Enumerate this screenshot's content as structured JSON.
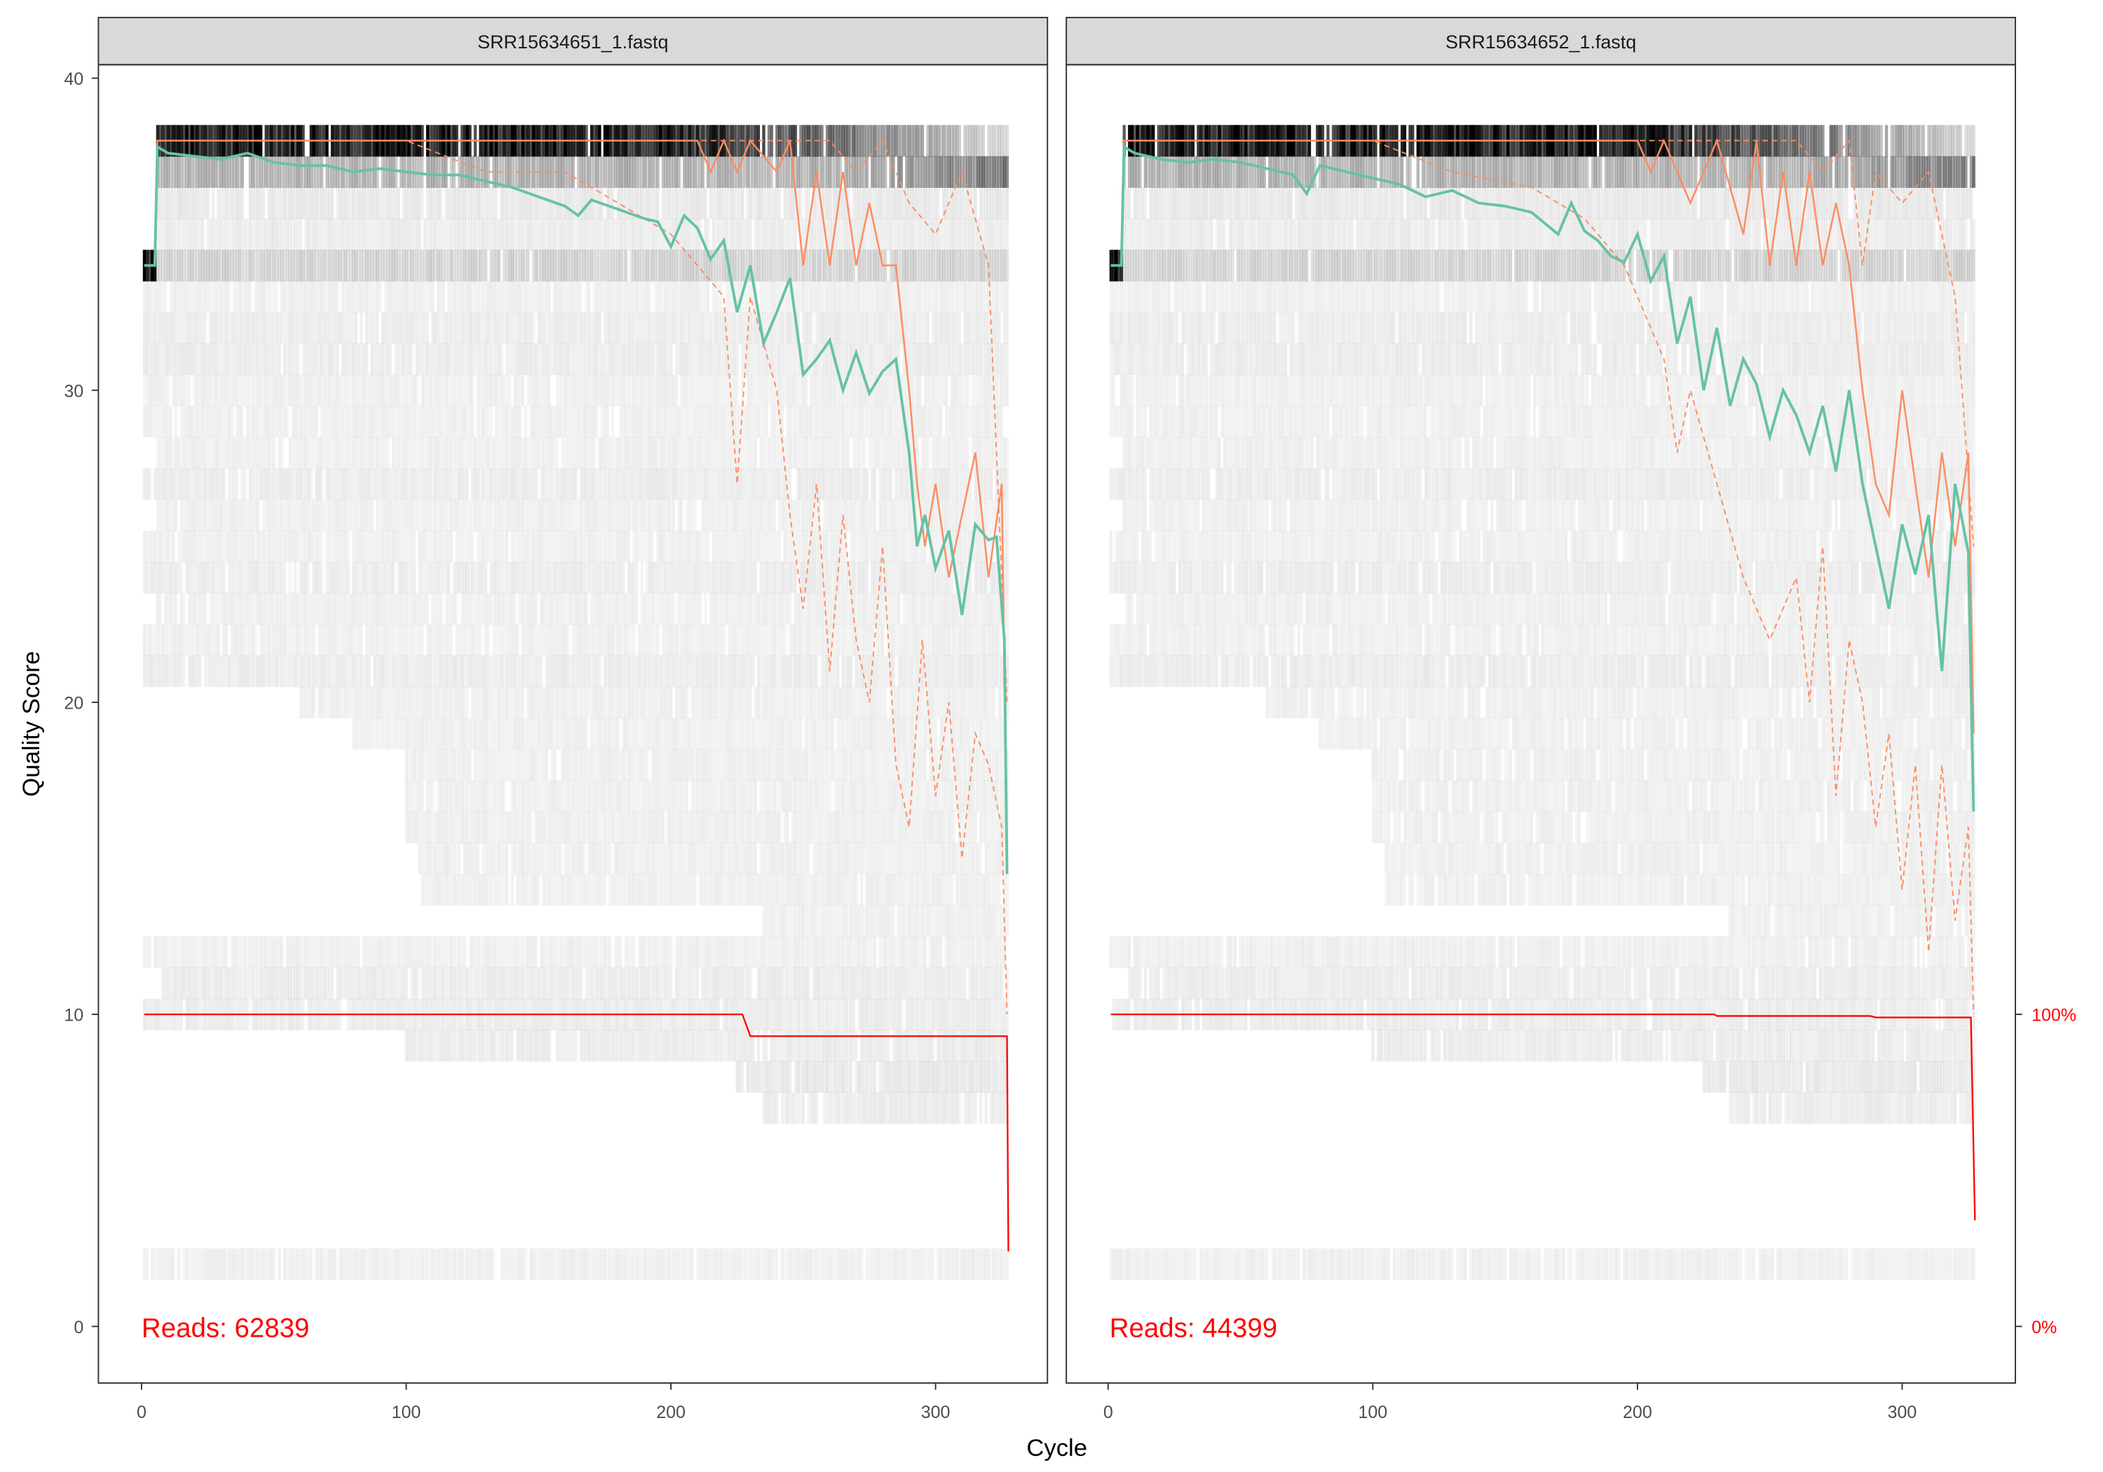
{
  "chart_data": {
    "type": "line",
    "xlabel": "Cycle",
    "ylabel": "Quality Score",
    "xlim": [
      -16,
      345
    ],
    "ylim": [
      -1.8,
      40.4
    ],
    "xticks": [
      "0",
      "100",
      "200",
      "300"
    ],
    "yticks": [
      "0",
      "10",
      "20",
      "30",
      "40"
    ],
    "right_axis_ticks": [
      "0%",
      "100%"
    ],
    "grid": false,
    "colors": {
      "mean": "#66c2a5",
      "quantiles": "#fc8d62",
      "cumulative_reads": "#ff0000",
      "heatmap": "#000000"
    },
    "panels": [
      {
        "title": "SRR15634651_1.fastq",
        "reads_label": "Reads:",
        "reads": "62839",
        "mean": {
          "x": [
            1,
            5,
            6,
            10,
            20,
            30,
            40,
            50,
            60,
            70,
            80,
            90,
            100,
            110,
            120,
            130,
            140,
            150,
            160,
            165,
            170,
            180,
            190,
            195,
            200,
            205,
            210,
            215,
            220,
            225,
            230,
            235,
            240,
            245,
            250,
            255,
            260,
            265,
            270,
            275,
            280,
            285,
            290,
            293,
            296,
            300,
            305,
            310,
            315,
            320,
            323,
            326,
            327
          ],
          "y": [
            34,
            34,
            37.8,
            37.6,
            37.5,
            37.4,
            37.6,
            37.3,
            37.2,
            37.2,
            37.0,
            37.1,
            37.0,
            36.9,
            36.9,
            36.7,
            36.5,
            36.2,
            35.9,
            35.6,
            36.1,
            35.8,
            35.5,
            35.4,
            34.6,
            35.6,
            35.2,
            34.2,
            34.8,
            32.5,
            34.0,
            31.5,
            32.5,
            33.6,
            30.5,
            31.0,
            31.6,
            30.0,
            31.2,
            29.9,
            30.6,
            31.0,
            28.0,
            25.0,
            26.0,
            24.3,
            25.5,
            22.8,
            25.7,
            25.2,
            25.3,
            22.0,
            14.5
          ]
        },
        "median": {
          "x": [
            1,
            5,
            6,
            200,
            205,
            210,
            215,
            220,
            225,
            230,
            240,
            245,
            250,
            255,
            260,
            265,
            270,
            275,
            280,
            285,
            290,
            293,
            296,
            300,
            305,
            310,
            315,
            320,
            325,
            327
          ],
          "y": [
            34,
            34,
            38,
            38,
            38,
            38,
            37,
            38,
            37,
            38,
            37,
            38,
            34,
            37,
            34,
            37,
            34,
            36,
            34,
            34,
            30,
            27,
            25,
            27,
            24,
            26,
            28,
            24,
            27,
            15
          ]
        },
        "q25": {
          "x": [
            1,
            5,
            6,
            100,
            130,
            160,
            180,
            200,
            210,
            220,
            225,
            230,
            240,
            245,
            250,
            255,
            260,
            265,
            270,
            275,
            280,
            285,
            290,
            295,
            300,
            305,
            310,
            315,
            320,
            325,
            327
          ],
          "y": [
            34,
            34,
            38,
            38,
            37,
            37,
            36,
            35,
            34,
            33,
            27,
            33,
            30,
            26,
            23,
            27,
            21,
            26,
            22,
            20,
            25,
            18,
            16,
            22,
            17,
            20,
            15,
            19,
            18,
            16,
            10
          ]
        },
        "q75": {
          "x": [
            1,
            5,
            6,
            250,
            260,
            270,
            280,
            290,
            300,
            310,
            320,
            327
          ],
          "y": [
            34,
            34,
            38,
            38,
            38,
            37,
            38,
            36,
            35,
            37,
            34,
            20
          ]
        },
        "cumulative_reads_pct": {
          "x": [
            1,
            227,
            230,
            327,
            327.5
          ],
          "y": [
            100,
            100,
            93,
            93,
            24
          ]
        }
      },
      {
        "title": "SRR15634652_1.fastq",
        "reads_label": "Reads:",
        "reads": "44399",
        "mean": {
          "x": [
            1,
            5,
            6,
            10,
            20,
            30,
            40,
            50,
            60,
            70,
            75,
            80,
            90,
            100,
            110,
            120,
            130,
            140,
            150,
            160,
            170,
            175,
            180,
            185,
            190,
            195,
            200,
            205,
            210,
            215,
            220,
            225,
            230,
            235,
            240,
            245,
            250,
            255,
            260,
            265,
            270,
            275,
            280,
            285,
            290,
            295,
            300,
            305,
            310,
            315,
            320,
            325,
            327
          ],
          "y": [
            34,
            34,
            37.8,
            37.6,
            37.4,
            37.3,
            37.4,
            37.3,
            37.1,
            36.9,
            36.3,
            37.2,
            37.0,
            36.8,
            36.6,
            36.2,
            36.4,
            36.0,
            35.9,
            35.7,
            35.0,
            36.0,
            35.1,
            34.8,
            34.3,
            34.1,
            35.0,
            33.5,
            34.3,
            31.5,
            33.0,
            30.0,
            32.0,
            29.5,
            31.0,
            30.2,
            28.5,
            30.0,
            29.2,
            28.0,
            29.5,
            27.4,
            30.0,
            27.0,
            25.0,
            23.0,
            25.7,
            24.1,
            26.0,
            21.0,
            27.0,
            24.8,
            16.5
          ]
        },
        "median": {
          "x": [
            1,
            5,
            6,
            200,
            205,
            210,
            215,
            220,
            225,
            230,
            240,
            245,
            250,
            255,
            260,
            265,
            270,
            275,
            280,
            285,
            290,
            295,
            300,
            305,
            310,
            315,
            320,
            325,
            327
          ],
          "y": [
            34,
            34,
            38,
            38,
            37,
            38,
            37,
            36,
            37,
            38,
            35,
            38,
            34,
            37,
            34,
            37,
            34,
            36,
            34,
            30,
            27,
            26,
            30,
            27,
            24,
            28,
            25,
            28,
            19
          ]
        },
        "q25": {
          "x": [
            1,
            5,
            6,
            100,
            130,
            160,
            180,
            195,
            200,
            210,
            215,
            220,
            230,
            240,
            250,
            260,
            265,
            270,
            275,
            280,
            285,
            290,
            295,
            300,
            305,
            310,
            315,
            320,
            325,
            327
          ],
          "y": [
            34,
            34,
            38,
            38,
            37,
            36.5,
            35.5,
            34,
            33,
            31,
            28,
            30,
            27,
            24,
            22,
            24,
            20,
            25,
            17,
            22,
            20,
            16,
            19,
            14,
            18,
            12,
            18,
            13,
            16,
            10
          ]
        },
        "q75": {
          "x": [
            1,
            5,
            6,
            260,
            270,
            280,
            285,
            290,
            300,
            310,
            320,
            327
          ],
          "y": [
            34,
            34,
            38,
            38,
            37,
            38,
            34,
            37,
            36,
            37,
            33,
            25
          ]
        },
        "cumulative_reads_pct": {
          "x": [
            1,
            229,
            230,
            288,
            290,
            326,
            327.5
          ],
          "y": [
            100,
            100,
            99.5,
            99.5,
            99,
            99,
            34
          ]
        }
      }
    ],
    "heatmap_rows": [
      {
        "score": 38,
        "start": 6,
        "end": 327,
        "shade": 0.85,
        "fade_from": 200,
        "fade_to": 0.12
      },
      {
        "score": 37,
        "start": 6,
        "end": 327,
        "shade": 0.25,
        "fade_from": 260,
        "fade_to": 0.45
      },
      {
        "score": 36,
        "start": 6,
        "end": 327,
        "shade": 0.07
      },
      {
        "score": 35,
        "start": 6,
        "end": 327,
        "shade": 0.06
      },
      {
        "score": 34,
        "start": 1,
        "end": 5,
        "shade": 0.95
      },
      {
        "score": 34,
        "start": 6,
        "end": 327,
        "shade": 0.14
      },
      {
        "score": 33,
        "start": 1,
        "end": 327,
        "shade": 0.05
      },
      {
        "score": 32,
        "start": 1,
        "end": 327,
        "shade": 0.06
      },
      {
        "score": 31,
        "start": 1,
        "end": 327,
        "shade": 0.06
      },
      {
        "score": 30,
        "start": 1,
        "end": 327,
        "shade": 0.05
      },
      {
        "score": 29,
        "start": 1,
        "end": 327,
        "shade": 0.05
      },
      {
        "score": 28,
        "start": 6,
        "end": 327,
        "shade": 0.05
      },
      {
        "score": 27,
        "start": 1,
        "end": 327,
        "shade": 0.06
      },
      {
        "score": 26,
        "start": 6,
        "end": 327,
        "shade": 0.05
      },
      {
        "score": 25,
        "start": 1,
        "end": 327,
        "shade": 0.05
      },
      {
        "score": 24,
        "start": 1,
        "end": 327,
        "shade": 0.06
      },
      {
        "score": 23,
        "start": 6,
        "end": 327,
        "shade": 0.05
      },
      {
        "score": 22,
        "start": 1,
        "end": 327,
        "shade": 0.05
      },
      {
        "score": 21,
        "start": 1,
        "end": 327,
        "shade": 0.06
      },
      {
        "score": 20,
        "start": 60,
        "end": 327,
        "shade": 0.05
      },
      {
        "score": 19,
        "start": 80,
        "end": 327,
        "shade": 0.05
      },
      {
        "score": 18,
        "start": 100,
        "end": 327,
        "shade": 0.05
      },
      {
        "score": 17,
        "start": 100,
        "end": 327,
        "shade": 0.05
      },
      {
        "score": 16,
        "start": 100,
        "end": 327,
        "shade": 0.05
      },
      {
        "score": 15,
        "start": 105,
        "end": 327,
        "shade": 0.05
      },
      {
        "score": 14,
        "start": 105,
        "end": 327,
        "shade": 0.05
      },
      {
        "score": 13,
        "start": 235,
        "end": 327,
        "shade": 0.05
      },
      {
        "score": 12,
        "start": 1,
        "end": 327,
        "shade": 0.05
      },
      {
        "score": 11,
        "start": 8,
        "end": 327,
        "shade": 0.06
      },
      {
        "score": 10,
        "start": 1,
        "end": 327,
        "shade": 0.06
      },
      {
        "score": 9,
        "start": 100,
        "end": 327,
        "shade": 0.06
      },
      {
        "score": 8,
        "start": 225,
        "end": 327,
        "shade": 0.07
      },
      {
        "score": 7,
        "start": 235,
        "end": 327,
        "shade": 0.06
      },
      {
        "score": 2,
        "start": 1,
        "end": 327,
        "shade": 0.05
      }
    ]
  }
}
